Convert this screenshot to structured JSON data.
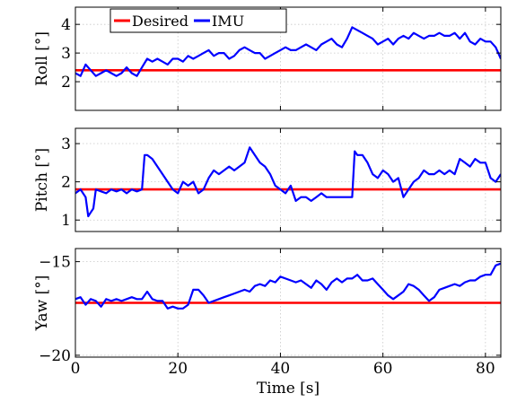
{
  "chart_data": [
    {
      "type": "line",
      "ylabel": "Roll [°]",
      "xlim": [
        0,
        83
      ],
      "ylim": [
        1.0,
        4.6
      ],
      "yticks": [
        2,
        3,
        4
      ],
      "xticks": [],
      "grid": true,
      "legend": {
        "position": "top-left",
        "entries": [
          "Desired",
          "IMU"
        ]
      },
      "series": [
        {
          "name": "Desired",
          "color": "#ff0000",
          "x": [
            0,
            83
          ],
          "y": [
            2.4,
            2.4
          ]
        },
        {
          "name": "IMU",
          "color": "#0000ff",
          "x": [
            0,
            1,
            2,
            3,
            4,
            5,
            6,
            7,
            8,
            9,
            10,
            11,
            12,
            13,
            14,
            15,
            16,
            17,
            18,
            19,
            20,
            21,
            22,
            23,
            24,
            25,
            26,
            27,
            28,
            29,
            30,
            31,
            32,
            33,
            34,
            35,
            36,
            37,
            38,
            39,
            40,
            41,
            42,
            43,
            44,
            45,
            46,
            47,
            48,
            49,
            50,
            51,
            52,
            53,
            54,
            55,
            56,
            57,
            58,
            59,
            60,
            61,
            62,
            63,
            64,
            65,
            66,
            67,
            68,
            69,
            70,
            71,
            72,
            73,
            74,
            75,
            76,
            77,
            78,
            79,
            80,
            81,
            82,
            83
          ],
          "y": [
            2.3,
            2.2,
            2.6,
            2.4,
            2.2,
            2.3,
            2.4,
            2.3,
            2.2,
            2.3,
            2.5,
            2.3,
            2.2,
            2.5,
            2.8,
            2.7,
            2.8,
            2.7,
            2.6,
            2.8,
            2.8,
            2.7,
            2.9,
            2.8,
            2.9,
            3.0,
            3.1,
            2.9,
            3.0,
            3.0,
            2.8,
            2.9,
            3.1,
            3.2,
            3.1,
            3.0,
            3.0,
            2.8,
            2.9,
            3.0,
            3.1,
            3.2,
            3.1,
            3.1,
            3.2,
            3.3,
            3.2,
            3.1,
            3.3,
            3.4,
            3.5,
            3.3,
            3.2,
            3.5,
            3.9,
            3.8,
            3.7,
            3.6,
            3.5,
            3.3,
            3.4,
            3.5,
            3.3,
            3.5,
            3.6,
            3.5,
            3.7,
            3.6,
            3.5,
            3.6,
            3.6,
            3.7,
            3.6,
            3.6,
            3.7,
            3.5,
            3.7,
            3.4,
            3.3,
            3.5,
            3.4,
            3.4,
            3.2,
            2.8
          ]
        }
      ]
    },
    {
      "type": "line",
      "ylabel": "Pitch [°]",
      "xlim": [
        0,
        83
      ],
      "ylim": [
        0.7,
        3.4
      ],
      "yticks": [
        1,
        2,
        3
      ],
      "xticks": [],
      "grid": true,
      "series": [
        {
          "name": "Desired",
          "color": "#ff0000",
          "x": [
            0,
            83
          ],
          "y": [
            1.8,
            1.8
          ]
        },
        {
          "name": "IMU",
          "color": "#0000ff",
          "x": [
            0,
            1,
            2,
            2.5,
            3,
            3.5,
            4,
            5,
            6,
            7,
            8,
            9,
            10,
            11,
            12,
            13,
            13.5,
            14,
            15,
            16,
            17,
            18,
            19,
            20,
            21,
            22,
            23,
            24,
            25,
            26,
            27,
            28,
            29,
            30,
            31,
            32,
            33,
            34,
            35,
            36,
            37,
            38,
            39,
            40,
            41,
            42,
            43,
            44,
            45,
            46,
            47,
            48,
            49,
            50,
            51,
            52,
            53,
            54,
            54.5,
            55,
            56,
            57,
            58,
            59,
            60,
            61,
            62,
            63,
            64,
            65,
            66,
            67,
            68,
            69,
            70,
            71,
            72,
            73,
            74,
            75,
            76,
            77,
            78,
            79,
            80,
            81,
            82,
            83
          ],
          "y": [
            1.7,
            1.8,
            1.6,
            1.1,
            1.2,
            1.3,
            1.8,
            1.75,
            1.7,
            1.8,
            1.75,
            1.8,
            1.7,
            1.8,
            1.75,
            1.8,
            2.7,
            2.7,
            2.6,
            2.4,
            2.2,
            2.0,
            1.8,
            1.7,
            2.0,
            1.9,
            2.0,
            1.7,
            1.8,
            2.1,
            2.3,
            2.2,
            2.3,
            2.4,
            2.3,
            2.4,
            2.5,
            2.9,
            2.7,
            2.5,
            2.4,
            2.2,
            1.9,
            1.8,
            1.7,
            1.9,
            1.5,
            1.6,
            1.6,
            1.5,
            1.6,
            1.7,
            1.6,
            1.6,
            1.6,
            1.6,
            1.6,
            1.6,
            2.8,
            2.7,
            2.7,
            2.5,
            2.2,
            2.1,
            2.3,
            2.2,
            2.0,
            2.1,
            1.6,
            1.8,
            2.0,
            2.1,
            2.3,
            2.2,
            2.2,
            2.3,
            2.2,
            2.3,
            2.2,
            2.6,
            2.5,
            2.4,
            2.6,
            2.5,
            2.5,
            2.1,
            2.0,
            2.2
          ]
        }
      ]
    },
    {
      "type": "line",
      "xlabel": "Time [s]",
      "ylabel": "Yaw [°]",
      "xlim": [
        0,
        83
      ],
      "ylim": [
        -20.1,
        -14.3
      ],
      "yticks": [
        -20,
        -15
      ],
      "xticks": [
        0,
        20,
        40,
        60,
        80
      ],
      "grid": true,
      "series": [
        {
          "name": "Desired",
          "color": "#ff0000",
          "x": [
            0,
            83
          ],
          "y": [
            -17.2,
            -17.2
          ]
        },
        {
          "name": "IMU",
          "color": "#0000ff",
          "x": [
            0,
            1,
            2,
            3,
            4,
            5,
            6,
            7,
            8,
            9,
            10,
            11,
            12,
            13,
            14,
            15,
            16,
            17,
            18,
            19,
            20,
            21,
            22,
            23,
            24,
            25,
            26,
            27,
            28,
            29,
            30,
            31,
            32,
            33,
            34,
            35,
            36,
            37,
            38,
            39,
            40,
            41,
            42,
            43,
            44,
            45,
            46,
            47,
            48,
            49,
            50,
            51,
            52,
            53,
            54,
            55,
            56,
            57,
            58,
            59,
            60,
            61,
            62,
            63,
            64,
            65,
            66,
            67,
            68,
            69,
            70,
            71,
            72,
            73,
            74,
            75,
            76,
            77,
            78,
            79,
            80,
            81,
            82,
            83
          ],
          "y": [
            -17.0,
            -16.9,
            -17.3,
            -17.0,
            -17.1,
            -17.4,
            -17.0,
            -17.1,
            -17.0,
            -17.1,
            -17.0,
            -16.9,
            -17.0,
            -17.0,
            -16.6,
            -17.0,
            -17.1,
            -17.1,
            -17.5,
            -17.4,
            -17.5,
            -17.5,
            -17.3,
            -16.5,
            -16.5,
            -16.8,
            -17.2,
            -17.1,
            -17.0,
            -16.9,
            -16.8,
            -16.7,
            -16.6,
            -16.5,
            -16.6,
            -16.3,
            -16.2,
            -16.3,
            -16.0,
            -16.1,
            -15.8,
            -15.9,
            -16.0,
            -16.1,
            -16.0,
            -16.2,
            -16.4,
            -16.0,
            -16.2,
            -16.5,
            -16.1,
            -15.9,
            -16.1,
            -15.9,
            -15.9,
            -15.7,
            -16.0,
            -16.0,
            -15.9,
            -16.2,
            -16.5,
            -16.8,
            -17.0,
            -16.8,
            -16.6,
            -16.2,
            -16.3,
            -16.5,
            -16.8,
            -17.1,
            -16.9,
            -16.5,
            -16.4,
            -16.3,
            -16.2,
            -16.3,
            -16.1,
            -16.0,
            -16.0,
            -15.8,
            -15.7,
            -15.7,
            -15.2,
            -15.1
          ]
        }
      ]
    }
  ]
}
